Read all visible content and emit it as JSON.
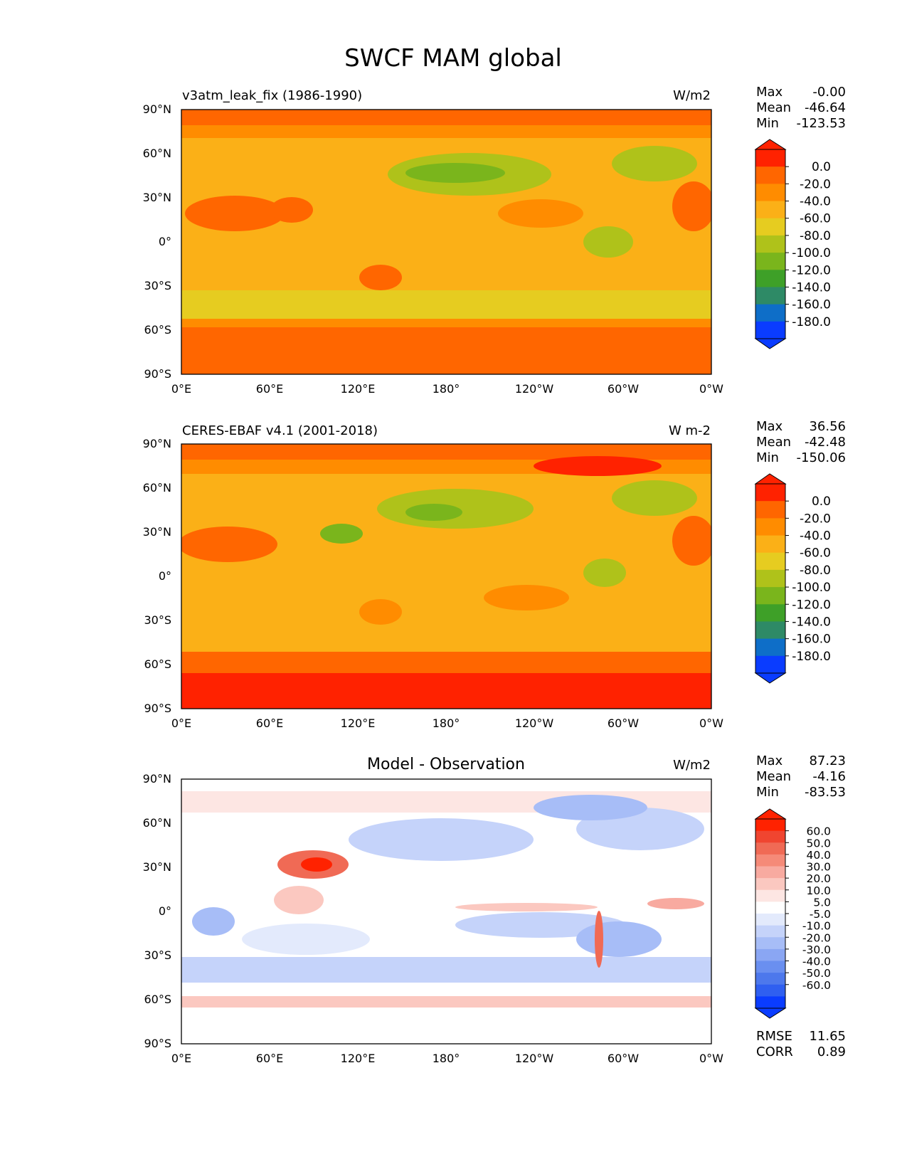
{
  "figure": {
    "title": "SWCF MAM global"
  },
  "x_ticks": [
    "0°E",
    "60°E",
    "120°E",
    "180°",
    "120°W",
    "60°W",
    "0°W"
  ],
  "y_ticks": [
    "90°N",
    "60°N",
    "30°N",
    "0°",
    "30°S",
    "60°S",
    "90°S"
  ],
  "colors": {
    "abs_levels": [
      "#ff2200",
      "#ff6600",
      "#ff8c00",
      "#fbb017",
      "#e6cc20",
      "#afc21a",
      "#7ab51c",
      "#3ea028",
      "#2e8a66",
      "#0e6ec8",
      "#0a3cff"
    ],
    "diff_levels": [
      "#ff2200",
      "#f04530",
      "#f06a55",
      "#f58a78",
      "#f8aaa0",
      "#fbc8c0",
      "#fde6e3",
      "#ffffff",
      "#e3eafc",
      "#c5d3fa",
      "#a7bdf7",
      "#8aa6f3",
      "#6a8ff0",
      "#4d78ec",
      "#2f5ff0",
      "#0a3cff"
    ],
    "coast": "#000000"
  },
  "chart_data": [
    {
      "type": "heatmap",
      "panel": "model",
      "title": "v3atm_leak_fix (1986-1990)",
      "units": "W/m2",
      "stats": {
        "labels": [
          "Max",
          "Mean",
          "Min"
        ],
        "values": [
          "-0.00",
          "-46.64",
          "-123.53"
        ]
      },
      "colorbar": {
        "levels": [
          "0.0",
          "-20.0",
          "-40.0",
          "-60.0",
          "-80.0",
          "-100.0",
          "-120.0",
          "-140.0",
          "-160.0",
          "-180.0"
        ]
      },
      "xlim": [
        0,
        360
      ],
      "ylim": [
        -90,
        90
      ]
    },
    {
      "type": "heatmap",
      "panel": "observation",
      "title": "CERES-EBAF v4.1 (2001-2018)",
      "units": "W m-2",
      "stats": {
        "labels": [
          "Max",
          "Mean",
          "Min"
        ],
        "values": [
          "36.56",
          "-42.48",
          "-150.06"
        ]
      },
      "colorbar": {
        "levels": [
          "0.0",
          "-20.0",
          "-40.0",
          "-60.0",
          "-80.0",
          "-100.0",
          "-120.0",
          "-140.0",
          "-160.0",
          "-180.0"
        ]
      },
      "xlim": [
        0,
        360
      ],
      "ylim": [
        -90,
        90
      ]
    },
    {
      "type": "heatmap",
      "panel": "difference",
      "title": "Model - Observation",
      "units": "W/m2",
      "stats": {
        "labels": [
          "Max",
          "Mean",
          "Min"
        ],
        "values": [
          "87.23",
          "-4.16",
          "-83.53"
        ]
      },
      "colorbar": {
        "levels": [
          "60.0",
          "50.0",
          "40.0",
          "30.0",
          "20.0",
          "10.0",
          "5.0",
          "-5.0",
          "-10.0",
          "-20.0",
          "-30.0",
          "-40.0",
          "-50.0",
          "-60.0"
        ]
      },
      "metrics": {
        "labels": [
          "RMSE",
          "CORR"
        ],
        "values": [
          "11.65",
          "0.89"
        ]
      },
      "xlim": [
        0,
        360
      ],
      "ylim": [
        -90,
        90
      ]
    }
  ]
}
